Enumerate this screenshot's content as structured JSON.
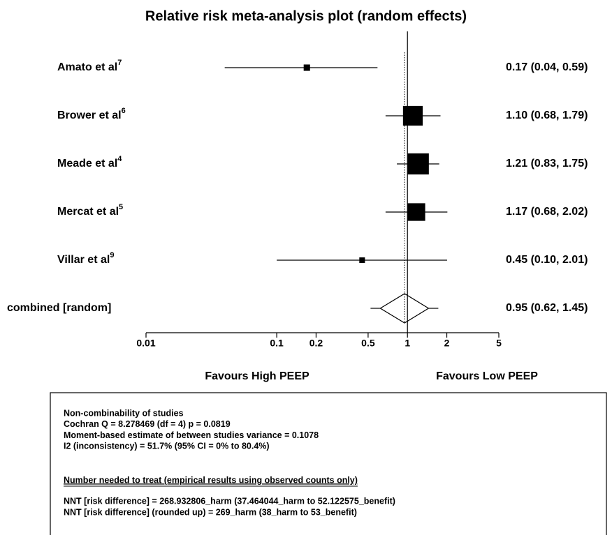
{
  "chart_data": {
    "type": "forest",
    "title": "Relative risk meta-analysis plot (random effects)",
    "log_x": true,
    "xlim": [
      0.01,
      5
    ],
    "xticks": [
      0.01,
      0.1,
      0.2,
      0.5,
      1,
      2,
      5
    ],
    "reference_line": 1,
    "xlabel_left": "Favours High PEEP",
    "xlabel_right": "Favours Low PEEP",
    "color": "#000000",
    "studies": [
      {
        "name": "Amato et al",
        "ref": "7",
        "value": 0.17,
        "lower": 0.04,
        "upper": 0.59,
        "weight": 3.3,
        "value_label": "0.17 (0.04, 0.59)"
      },
      {
        "name": "Brower et al",
        "ref": "6",
        "value": 1.1,
        "lower": 0.68,
        "upper": 1.79,
        "weight": 31.9,
        "value_label": "1.10 (0.68, 1.79)"
      },
      {
        "name": "Meade et al",
        "ref": "4",
        "value": 1.21,
        "lower": 0.83,
        "upper": 1.75,
        "weight": 36.7,
        "value_label": "1.21 (0.83, 1.75)"
      },
      {
        "name": "Mercat et al",
        "ref": "5",
        "value": 1.17,
        "lower": 0.68,
        "upper": 2.02,
        "weight": 25.5,
        "value_label": "1.17 (0.68, 2.02)"
      },
      {
        "name": "Villar et al",
        "ref": "9",
        "value": 0.45,
        "lower": 0.1,
        "upper": 2.01,
        "weight": 2.6,
        "value_label": "0.45 (0.10, 2.01)"
      }
    ],
    "combined": {
      "name": "combined [random]",
      "value": 0.95,
      "lower": 0.62,
      "upper": 1.45,
      "value_label": "0.95 (0.62, 1.45)"
    }
  },
  "stats_box": {
    "lines": [
      "Non-combinability of studies",
      "Cochran Q = 8.278469 (df = 4) p = 0.0819",
      "Moment-based estimate of between studies variance = 0.1078",
      "I2 (inconsistency) = 51.7% (95% CI = 0% to 80.4%)"
    ],
    "nnt_heading": "Number needed to treat (empirical results using observed counts only)",
    "nnt_lines": [
      "NNT [risk difference] = 268.932806_harm (37.464044_harm to 52.122575_benefit)",
      "NNT [risk difference] (rounded up) = 269_harm (38_harm to 53_benefit)"
    ]
  }
}
